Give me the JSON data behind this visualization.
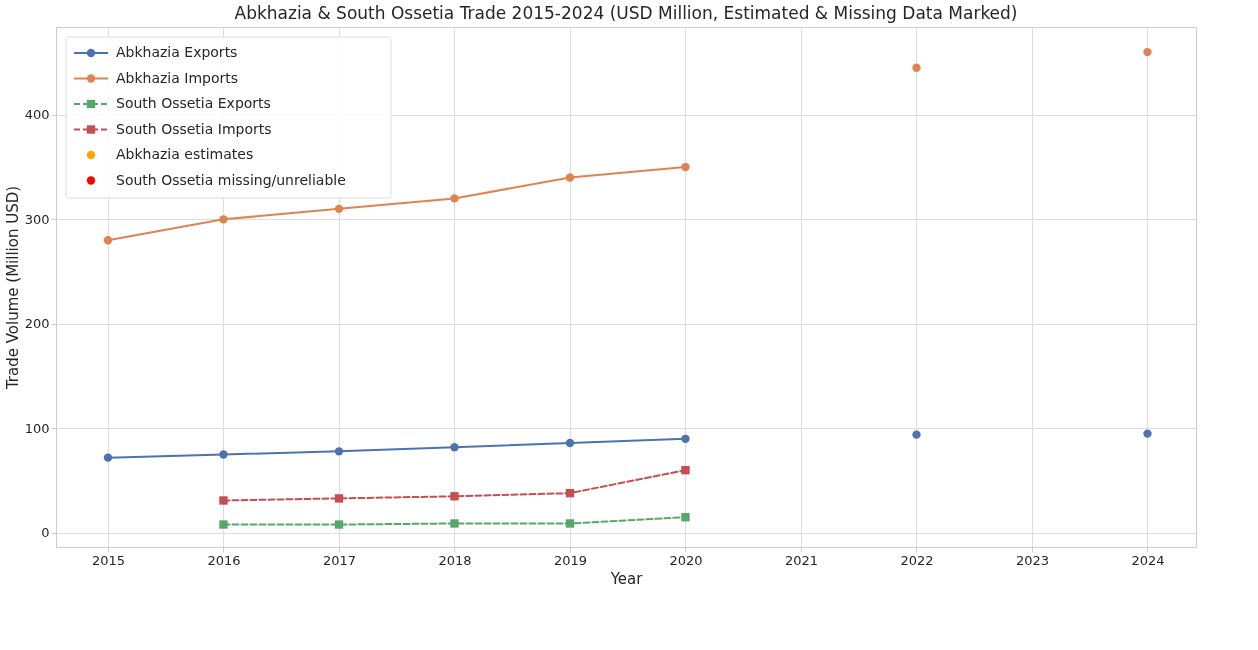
{
  "chart_data": {
    "type": "line",
    "title": "Abkhazia & South Ossetia Trade 2015-2024 (USD Million, Estimated & Missing Data Marked)",
    "xlabel": "Year",
    "ylabel": "Trade Volume (Million USD)",
    "x": [
      2015,
      2016,
      2017,
      2018,
      2019,
      2020,
      2021,
      2022,
      2023,
      2024
    ],
    "series": [
      {
        "name": "Abkhazia Exports",
        "color": "#4c72b0",
        "marker": "circle",
        "line_style": "solid",
        "values": [
          72,
          75,
          78,
          82,
          86,
          90,
          null,
          94,
          null,
          95
        ]
      },
      {
        "name": "Abkhazia Imports",
        "color": "#dd8452",
        "marker": "circle",
        "line_style": "solid",
        "values": [
          280,
          300,
          310,
          320,
          340,
          350,
          null,
          445,
          null,
          460
        ]
      },
      {
        "name": "South Ossetia Exports",
        "color": "#55a868",
        "marker": "square",
        "line_style": "dashed",
        "values": [
          null,
          8,
          8,
          9,
          9,
          15,
          null,
          null,
          null,
          null
        ]
      },
      {
        "name": "South Ossetia Imports",
        "color": "#c44e52",
        "marker": "square",
        "line_style": "dashed",
        "values": [
          null,
          31,
          33,
          35,
          38,
          60,
          null,
          null,
          null,
          null
        ]
      },
      {
        "name": "Abkhazia estimates",
        "type": "scatter",
        "color": "#ffa500",
        "marker": "circle",
        "values": [
          null,
          null,
          null,
          null,
          null,
          null,
          null,
          null,
          null,
          null
        ]
      },
      {
        "name": "South Ossetia missing/unreliable",
        "type": "scatter",
        "color": "#ff0000",
        "marker": "circle",
        "values": [
          null,
          null,
          null,
          null,
          null,
          null,
          null,
          null,
          null,
          null
        ]
      }
    ],
    "xlim": [
      2014.55,
      2024.42
    ],
    "xticks": [
      2015,
      2016,
      2017,
      2018,
      2019,
      2020,
      2021,
      2022,
      2023,
      2024
    ],
    "ylim": [
      -13.5,
      484
    ],
    "yticks": [
      0,
      100,
      200,
      300,
      400
    ],
    "grid": true,
    "legend": "top left"
  }
}
